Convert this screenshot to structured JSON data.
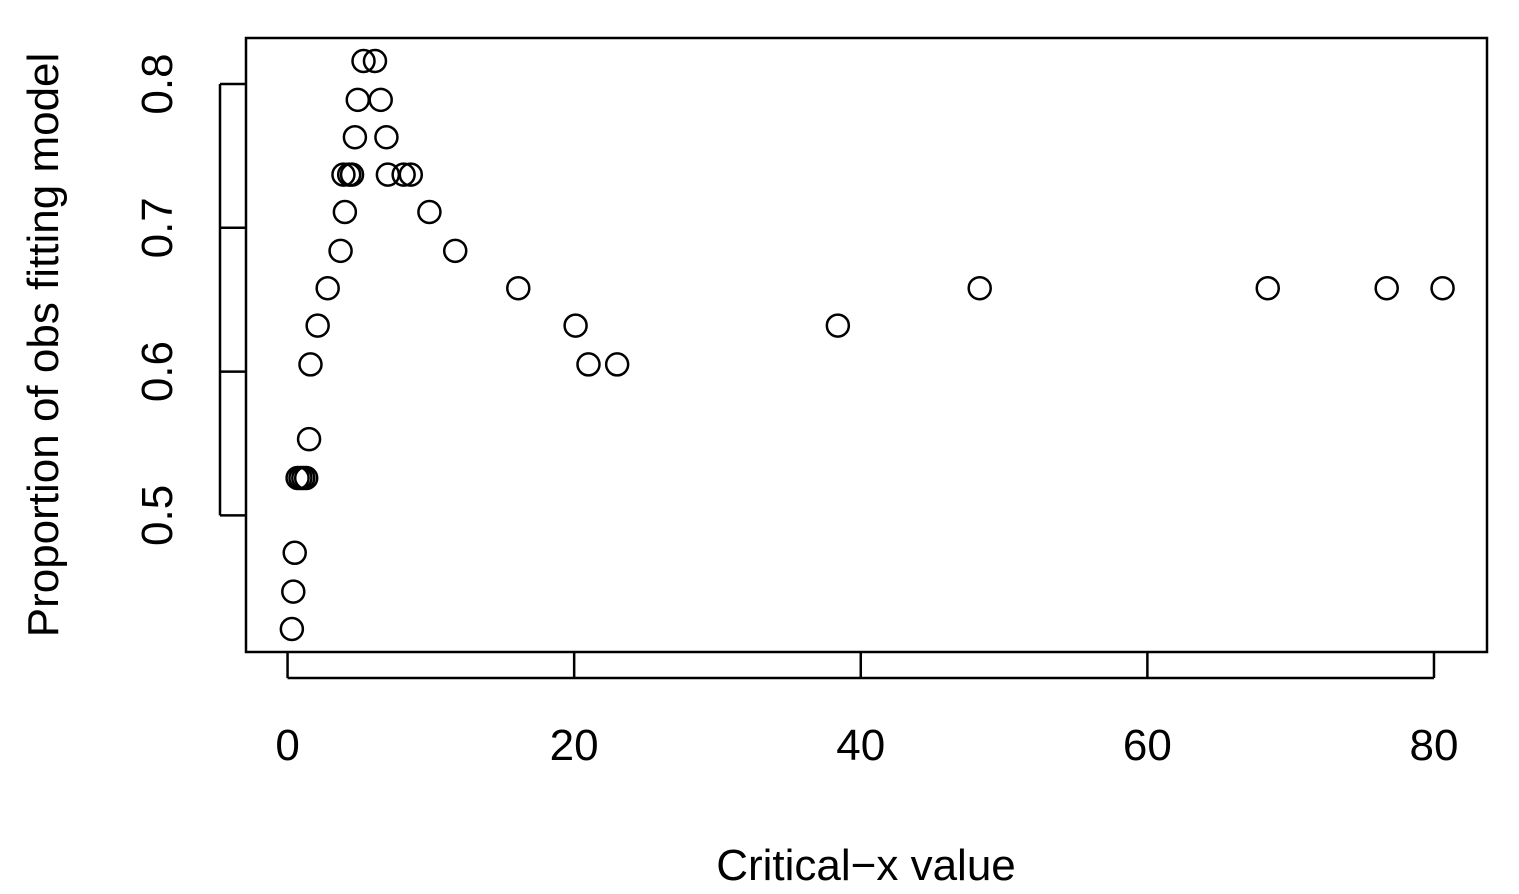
{
  "chart_data": {
    "type": "scatter",
    "title": "",
    "xlabel": "Critical−x value",
    "ylabel": "Proportion of obs fitting model",
    "xlim": [
      -2.9,
      83.7
    ],
    "ylim": [
      0.405,
      0.832
    ],
    "xticks": [
      0,
      20,
      40,
      60,
      80
    ],
    "yticks": [
      0.5,
      0.6,
      0.7,
      0.8
    ],
    "xtick_labels": [
      "0",
      "20",
      "40",
      "60",
      "80"
    ],
    "ytick_labels": [
      "0.5",
      "0.6",
      "0.7",
      "0.8"
    ],
    "grid": false,
    "legend": "none",
    "marker": "open-circle",
    "color": "#000000",
    "points": [
      {
        "x": 0.3,
        "y": 0.421
      },
      {
        "x": 0.4,
        "y": 0.447
      },
      {
        "x": 0.5,
        "y": 0.474
      },
      {
        "x": 0.7,
        "y": 0.526
      },
      {
        "x": 0.9,
        "y": 0.526
      },
      {
        "x": 1.1,
        "y": 0.526
      },
      {
        "x": 1.3,
        "y": 0.526
      },
      {
        "x": 1.5,
        "y": 0.553
      },
      {
        "x": 1.6,
        "y": 0.605
      },
      {
        "x": 2.1,
        "y": 0.632
      },
      {
        "x": 2.8,
        "y": 0.658
      },
      {
        "x": 3.7,
        "y": 0.684
      },
      {
        "x": 4.0,
        "y": 0.711
      },
      {
        "x": 3.9,
        "y": 0.737
      },
      {
        "x": 4.3,
        "y": 0.737
      },
      {
        "x": 4.5,
        "y": 0.737
      },
      {
        "x": 4.7,
        "y": 0.763
      },
      {
        "x": 4.9,
        "y": 0.789
      },
      {
        "x": 5.3,
        "y": 0.816
      },
      {
        "x": 6.1,
        "y": 0.816
      },
      {
        "x": 6.5,
        "y": 0.789
      },
      {
        "x": 6.9,
        "y": 0.763
      },
      {
        "x": 7.0,
        "y": 0.737
      },
      {
        "x": 8.1,
        "y": 0.737
      },
      {
        "x": 8.6,
        "y": 0.737
      },
      {
        "x": 9.9,
        "y": 0.711
      },
      {
        "x": 11.7,
        "y": 0.684
      },
      {
        "x": 16.1,
        "y": 0.658
      },
      {
        "x": 20.1,
        "y": 0.632
      },
      {
        "x": 21.0,
        "y": 0.605
      },
      {
        "x": 23.0,
        "y": 0.605
      },
      {
        "x": 38.4,
        "y": 0.632
      },
      {
        "x": 48.3,
        "y": 0.658
      },
      {
        "x": 68.4,
        "y": 0.658
      },
      {
        "x": 76.7,
        "y": 0.658
      },
      {
        "x": 80.6,
        "y": 0.658
      }
    ]
  }
}
